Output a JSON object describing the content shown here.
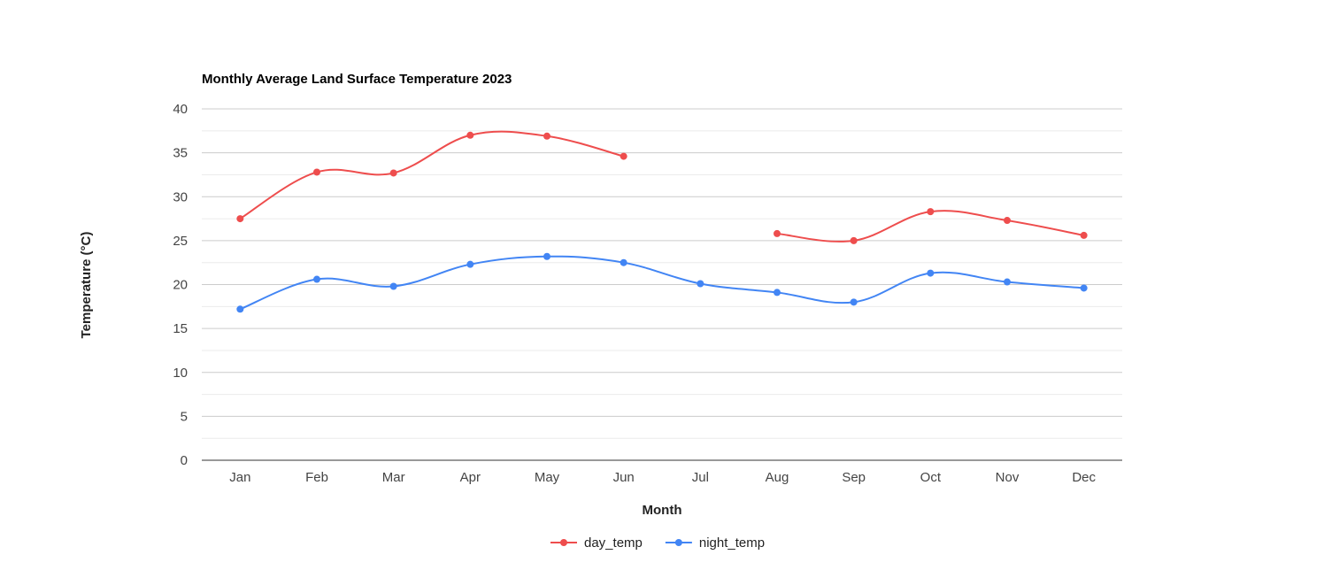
{
  "chart_data": {
    "type": "line",
    "title": "Monthly Average Land Surface Temperature 2023",
    "xlabel": "Month",
    "ylabel": "Temperature (°C)",
    "categories": [
      "Jan",
      "Feb",
      "Mar",
      "Apr",
      "May",
      "Jun",
      "Jul",
      "Aug",
      "Sep",
      "Oct",
      "Nov",
      "Dec"
    ],
    "ylim": [
      0,
      40
    ],
    "yticks": [
      0,
      5,
      10,
      15,
      20,
      25,
      30,
      35,
      40
    ],
    "grid": true,
    "legend_position": "bottom",
    "series": [
      {
        "name": "day_temp",
        "color": "#ee4d4d",
        "values": [
          27.5,
          32.8,
          32.7,
          37.0,
          36.9,
          34.6,
          null,
          25.8,
          25.0,
          28.3,
          27.3,
          25.6
        ]
      },
      {
        "name": "night_temp",
        "color": "#4285f4",
        "values": [
          17.2,
          20.6,
          19.8,
          22.3,
          23.2,
          22.5,
          20.1,
          19.1,
          18.0,
          21.3,
          20.3,
          19.6
        ]
      }
    ]
  }
}
